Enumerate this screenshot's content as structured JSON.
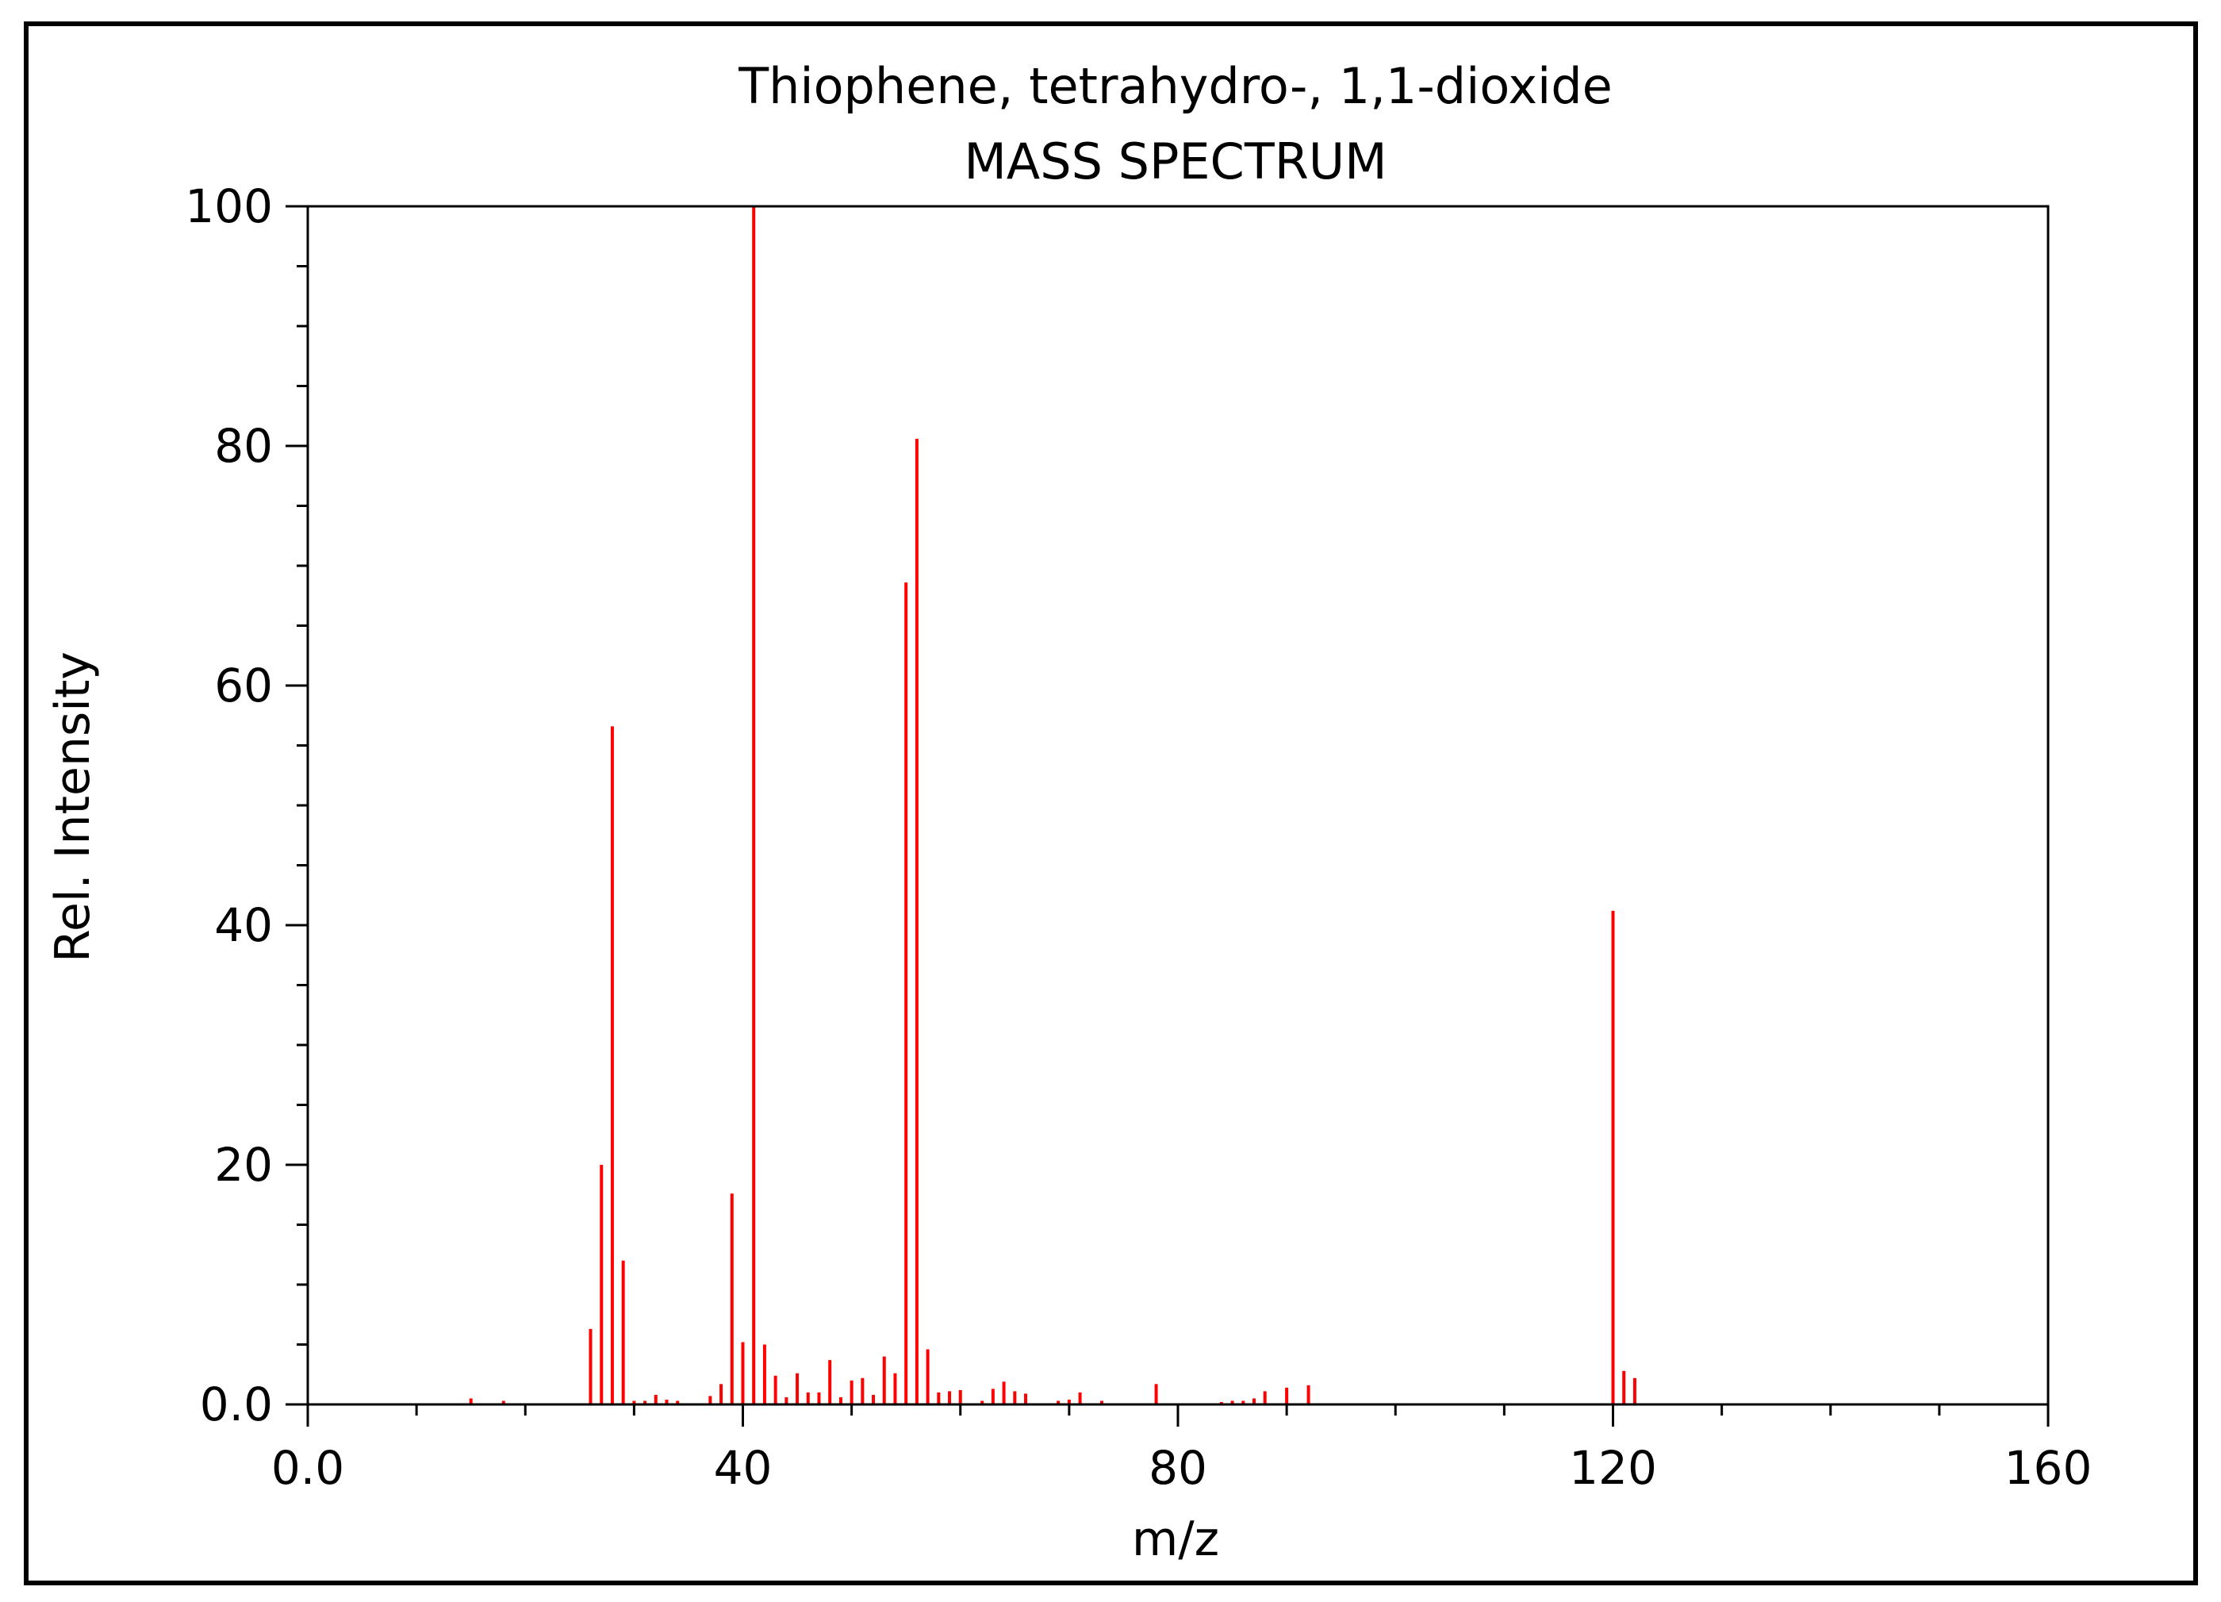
{
  "chart_data": {
    "type": "bar",
    "title": "Thiophene, tetrahydro-, 1,1-dioxide",
    "subtitle": "MASS SPECTRUM",
    "xlabel": "m/z",
    "ylabel": "Rel. Intensity",
    "xlim": [
      0,
      160
    ],
    "ylim": [
      0,
      100
    ],
    "x_ticks": [
      "0.0",
      "40",
      "80",
      "120",
      "160"
    ],
    "y_ticks": [
      "0.0",
      "20",
      "40",
      "60",
      "80",
      "100"
    ],
    "grid": false,
    "bar_color": "#ff0000",
    "series": [
      {
        "values": [
          [
            15,
            0.5
          ],
          [
            18,
            0.3
          ],
          [
            26,
            6.3
          ],
          [
            27,
            20.0
          ],
          [
            28,
            56.6
          ],
          [
            29,
            12.0
          ],
          [
            30,
            0.3
          ],
          [
            31,
            0.3
          ],
          [
            32,
            0.8
          ],
          [
            33,
            0.4
          ],
          [
            34,
            0.3
          ],
          [
            37,
            0.7
          ],
          [
            38,
            1.7
          ],
          [
            39,
            17.6
          ],
          [
            40,
            5.2
          ],
          [
            41,
            100.0
          ],
          [
            42,
            5.0
          ],
          [
            43,
            2.4
          ],
          [
            44,
            0.6
          ],
          [
            45,
            2.6
          ],
          [
            46,
            1.0
          ],
          [
            47,
            1.0
          ],
          [
            48,
            3.7
          ],
          [
            49,
            0.6
          ],
          [
            50,
            2.0
          ],
          [
            51,
            2.2
          ],
          [
            52,
            0.8
          ],
          [
            53,
            4.0
          ],
          [
            54,
            2.6
          ],
          [
            55,
            68.6
          ],
          [
            56,
            80.6
          ],
          [
            57,
            4.6
          ],
          [
            58,
            1.0
          ],
          [
            59,
            1.1
          ],
          [
            60,
            1.2
          ],
          [
            62,
            0.3
          ],
          [
            63,
            1.3
          ],
          [
            64,
            1.9
          ],
          [
            65,
            1.1
          ],
          [
            66,
            0.9
          ],
          [
            69,
            0.3
          ],
          [
            70,
            0.4
          ],
          [
            71,
            1.0
          ],
          [
            73,
            0.3
          ],
          [
            78,
            1.7
          ],
          [
            84,
            0.2
          ],
          [
            85,
            0.3
          ],
          [
            86,
            0.3
          ],
          [
            87,
            0.5
          ],
          [
            88,
            1.1
          ],
          [
            90,
            1.4
          ],
          [
            92,
            1.6
          ],
          [
            120,
            41.2
          ],
          [
            121,
            2.8
          ],
          [
            122,
            2.2
          ]
        ]
      }
    ]
  }
}
